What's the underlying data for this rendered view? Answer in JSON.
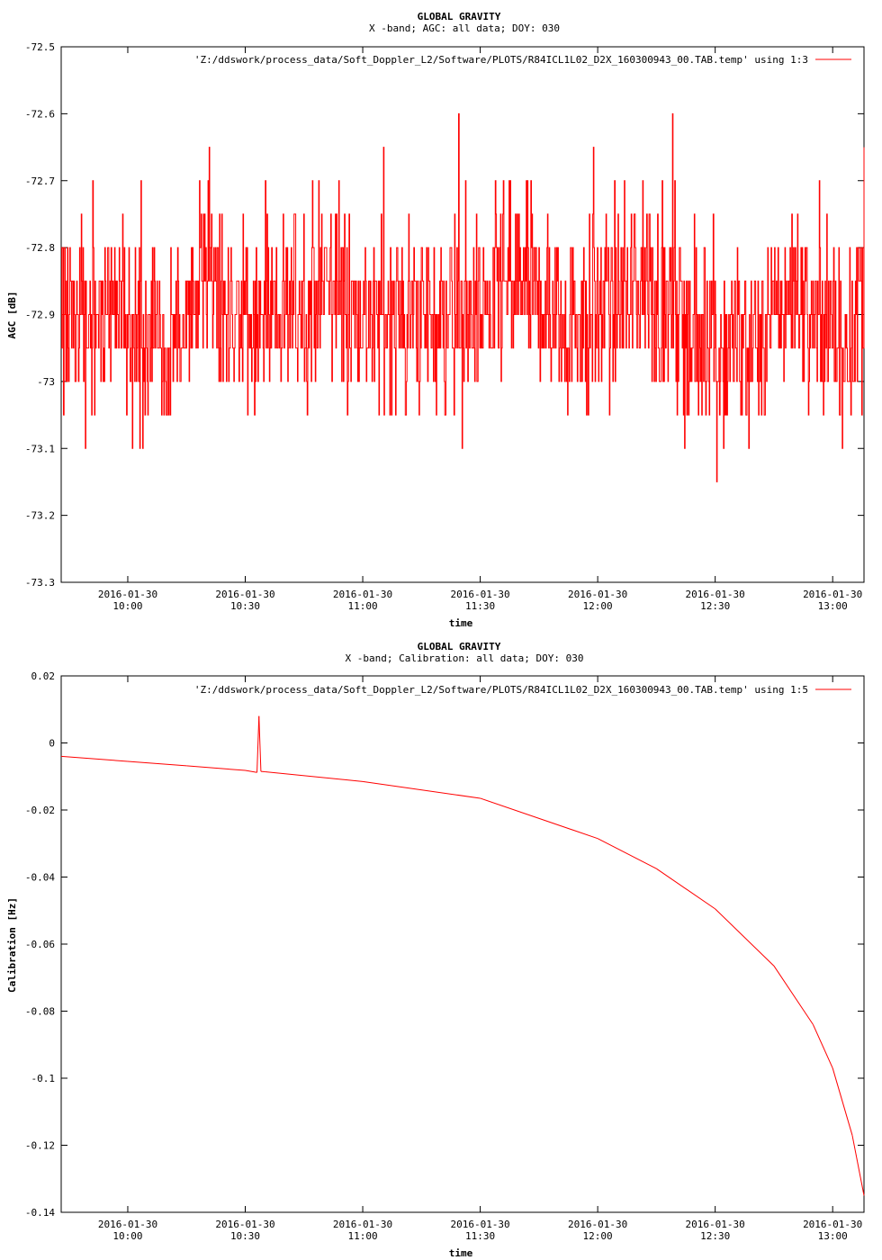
{
  "chart_data": [
    {
      "type": "line",
      "title": "GLOBAL GRAVITY",
      "subtitle": "X -band; AGC: all data; DOY: 030",
      "xlabel": "time",
      "ylabel": "AGC [dB]",
      "ylim": [
        -73.3,
        -72.5
      ],
      "yticks": [
        {
          "v": -72.5,
          "label": "-72.5"
        },
        {
          "v": -72.6,
          "label": "-72.6"
        },
        {
          "v": -72.7,
          "label": "-72.7"
        },
        {
          "v": -72.8,
          "label": "-72.8"
        },
        {
          "v": -72.9,
          "label": "-72.9"
        },
        {
          "v": -73.0,
          "label": "-73"
        },
        {
          "v": -73.1,
          "label": "-73.1"
        },
        {
          "v": -73.2,
          "label": "-73.2"
        },
        {
          "v": -73.3,
          "label": "-73.3"
        }
      ],
      "xlim": [
        "2016-01-30 09:43",
        "2016-01-30 13:08"
      ],
      "xticks": [
        {
          "v": "2016-01-30 10:00",
          "date": "2016-01-30",
          "time": "10:00"
        },
        {
          "v": "2016-01-30 10:30",
          "date": "2016-01-30",
          "time": "10:30"
        },
        {
          "v": "2016-01-30 11:00",
          "date": "2016-01-30",
          "time": "11:00"
        },
        {
          "v": "2016-01-30 11:30",
          "date": "2016-01-30",
          "time": "11:30"
        },
        {
          "v": "2016-01-30 12:00",
          "date": "2016-01-30",
          "time": "12:00"
        },
        {
          "v": "2016-01-30 12:30",
          "date": "2016-01-30",
          "time": "12:30"
        },
        {
          "v": "2016-01-30 13:00",
          "date": "2016-01-30",
          "time": "13:00"
        }
      ],
      "series": [
        {
          "name": "'Z:/ddswork/process_data/Soft_Doppler_L2/Software/PLOTS/R84ICL1L02_D2X_160300943_00.TAB.temp' using 1:3",
          "color": "#ff0000",
          "x": [
            "2016-01-30 09:43",
            "2016-01-30 09:50",
            "2016-01-30 10:00",
            "2016-01-30 10:10",
            "2016-01-30 10:20",
            "2016-01-30 10:30",
            "2016-01-30 10:40",
            "2016-01-30 10:50",
            "2016-01-30 11:00",
            "2016-01-30 11:10",
            "2016-01-30 11:20",
            "2016-01-30 11:30",
            "2016-01-30 11:40",
            "2016-01-30 11:50",
            "2016-01-30 12:00",
            "2016-01-30 12:10",
            "2016-01-30 12:20",
            "2016-01-30 12:30",
            "2016-01-30 12:40",
            "2016-01-30 12:50",
            "2016-01-30 13:00",
            "2016-01-30 13:08"
          ],
          "values": [
            -72.9,
            -72.9,
            -72.9,
            -72.95,
            -72.85,
            -72.9,
            -72.9,
            -72.85,
            -72.9,
            -72.9,
            -72.9,
            -72.9,
            -72.85,
            -72.9,
            -72.9,
            -72.85,
            -72.9,
            -72.95,
            -72.95,
            -72.85,
            -72.95,
            -72.9
          ]
        }
      ],
      "grid": false,
      "legend": "top-right"
    },
    {
      "type": "line",
      "title": "GLOBAL GRAVITY",
      "subtitle": "X -band; Calibration: all data; DOY: 030",
      "xlabel": "time",
      "ylabel": "Calibration [Hz]",
      "ylim": [
        -0.14,
        0.02
      ],
      "yticks": [
        {
          "v": 0.02,
          "label": "0.02"
        },
        {
          "v": 0,
          "label": "0"
        },
        {
          "v": -0.02,
          "label": "-0.02"
        },
        {
          "v": -0.04,
          "label": "-0.04"
        },
        {
          "v": -0.06,
          "label": "-0.06"
        },
        {
          "v": -0.08,
          "label": "-0.08"
        },
        {
          "v": -0.1,
          "label": "-0.1"
        },
        {
          "v": -0.12,
          "label": "-0.12"
        },
        {
          "v": -0.14,
          "label": "-0.14"
        }
      ],
      "xlim": [
        "2016-01-30 09:43",
        "2016-01-30 13:08"
      ],
      "xticks": [
        {
          "v": "2016-01-30 10:00",
          "date": "2016-01-30",
          "time": "10:00"
        },
        {
          "v": "2016-01-30 10:30",
          "date": "2016-01-30",
          "time": "10:30"
        },
        {
          "v": "2016-01-30 11:00",
          "date": "2016-01-30",
          "time": "11:00"
        },
        {
          "v": "2016-01-30 11:30",
          "date": "2016-01-30",
          "time": "11:30"
        },
        {
          "v": "2016-01-30 12:00",
          "date": "2016-01-30",
          "time": "12:00"
        },
        {
          "v": "2016-01-30 12:30",
          "date": "2016-01-30",
          "time": "12:30"
        },
        {
          "v": "2016-01-30 13:00",
          "date": "2016-01-30",
          "time": "13:00"
        }
      ],
      "series": [
        {
          "name": "'Z:/ddswork/process_data/Soft_Doppler_L2/Software/PLOTS/R84ICL1L02_D2X_160300943_00.TAB.temp' using 1:5",
          "color": "#ff0000",
          "x": [
            "2016-01-30 09:43",
            "2016-01-30 10:00",
            "2016-01-30 10:15",
            "2016-01-30 10:30",
            "2016-01-30 10:33",
            "2016-01-30 10:33:30",
            "2016-01-30 10:34",
            "2016-01-30 10:35",
            "2016-01-30 11:00",
            "2016-01-30 11:30",
            "2016-01-30 12:00",
            "2016-01-30 12:15",
            "2016-01-30 12:30",
            "2016-01-30 12:45",
            "2016-01-30 12:55",
            "2016-01-30 13:00",
            "2016-01-30 13:05",
            "2016-01-30 13:08"
          ],
          "values": [
            -0.004,
            -0.0055,
            -0.0068,
            -0.0082,
            -0.0088,
            0.008,
            -0.0085,
            -0.0086,
            -0.0115,
            -0.0165,
            -0.0285,
            -0.0375,
            -0.0495,
            -0.0665,
            -0.084,
            -0.097,
            -0.117,
            -0.135
          ]
        }
      ],
      "grid": false,
      "legend": "top-right"
    }
  ]
}
